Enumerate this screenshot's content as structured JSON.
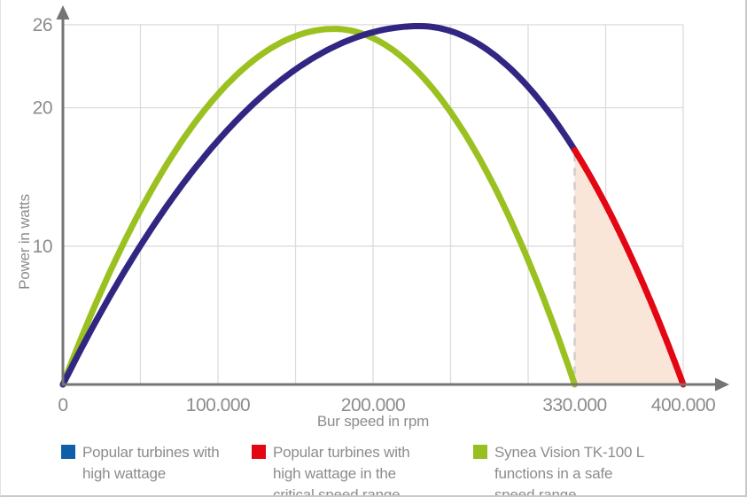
{
  "page": {
    "background": "#ffffff",
    "frame_border_color": "#c9c9c9"
  },
  "chart_data": {
    "type": "line",
    "title": "",
    "xlabel": "Bur speed in rpm",
    "ylabel": "Power in watts",
    "xlim": [
      0,
      420000
    ],
    "ylim": [
      0,
      27
    ],
    "grid": true,
    "grid_color": "#dcdcdc",
    "axis_color": "#757575",
    "tick_text_color": "#8c8c8c",
    "x_gridline_step_rpm": 50000,
    "y_gridlines_watts": [
      26,
      20,
      10
    ],
    "y_tick_labels": [
      "26",
      "20",
      "10"
    ],
    "x_tick_labels": [
      {
        "value": 0,
        "label": "0"
      },
      {
        "value": 100000,
        "label": "100.000"
      },
      {
        "value": 200000,
        "label": "200.000"
      },
      {
        "value": 330000,
        "label": "330.000"
      },
      {
        "value": 400000,
        "label": "400.000"
      }
    ],
    "series": [
      {
        "name": "Popular turbines with high wattage",
        "color": "#312783",
        "critical_color": "#e30613",
        "critical_from_rpm": 330000,
        "zero_start_rpm": 0,
        "peak_rpm": 230000,
        "peak_watts": 25.9,
        "zero_end_rpm": 400000,
        "points_rpm_watts": [
          [
            0,
            0
          ],
          [
            50000,
            10.0
          ],
          [
            100000,
            17.6
          ],
          [
            150000,
            22.8
          ],
          [
            200000,
            25.5
          ],
          [
            230000,
            25.9
          ],
          [
            250000,
            25.5
          ],
          [
            300000,
            21.5
          ],
          [
            330000,
            16.9
          ],
          [
            350000,
            13.0
          ],
          [
            375000,
            7.1
          ],
          [
            400000,
            0
          ]
        ]
      },
      {
        "name": "Synea Vision TK-100 L",
        "color": "#9bc120",
        "zero_start_rpm": 0,
        "peak_rpm": 175000,
        "peak_watts": 25.7,
        "zero_end_rpm": 330000,
        "points_rpm_watts": [
          [
            0,
            0
          ],
          [
            50000,
            12.6
          ],
          [
            100000,
            21.0
          ],
          [
            150000,
            25.2
          ],
          [
            175000,
            25.7
          ],
          [
            200000,
            25.0
          ],
          [
            250000,
            19.7
          ],
          [
            300000,
            9.0
          ],
          [
            330000,
            0
          ]
        ]
      }
    ],
    "critical_region": {
      "from_rpm": 330000,
      "to_rpm": 400000,
      "fill": "#f9e6d8",
      "dashed_boundary_color": "#cccccc"
    }
  },
  "legend": {
    "items": [
      {
        "swatch_color": "#0e5fa8",
        "lines": [
          "Popular turbines with",
          "high wattage"
        ]
      },
      {
        "swatch_color": "#e30613",
        "lines": [
          "Popular turbines with",
          "high wattage in the",
          "critical speed range"
        ]
      },
      {
        "swatch_color": "#97bf1f",
        "lines": [
          "Synea Vision TK-100 L",
          "functions in a safe",
          "speed range"
        ]
      }
    ]
  }
}
